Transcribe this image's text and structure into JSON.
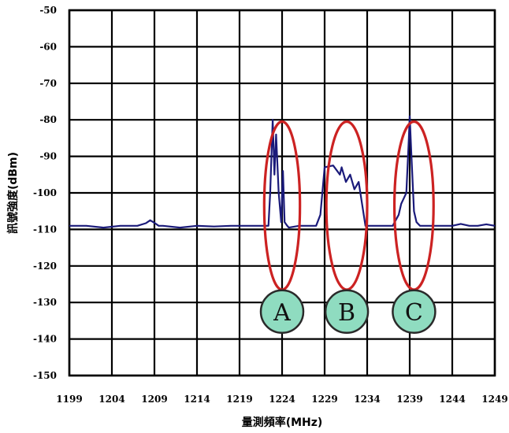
{
  "chart_data": {
    "type": "line",
    "title": "",
    "xlabel": "量測頻率(MHz)",
    "ylabel": "訊號強度(dBm)",
    "xlim": [
      1199,
      1249
    ],
    "ylim": [
      -150,
      -50
    ],
    "x_ticks": [
      "1199",
      "1204",
      "1209",
      "1214",
      "1219",
      "1224",
      "1229",
      "1234",
      "1239",
      "1244",
      "1249"
    ],
    "y_ticks": [
      "-50",
      "-60",
      "-70",
      "-80",
      "-90",
      "-100",
      "-110",
      "-120",
      "-130",
      "-140",
      "-150"
    ],
    "grid": true,
    "line_color": "#1a1a7a",
    "highlight_color": "#cc2222",
    "badge_color": "#8fdcc0",
    "series": [
      {
        "x": [
          1199,
          1201,
          1203,
          1205,
          1207,
          1208,
          1208.5,
          1209,
          1209.5,
          1210,
          1212,
          1214,
          1216,
          1218,
          1220,
          1222,
          1222.4,
          1222.6,
          1222.9,
          1223.1,
          1223.3,
          1223.6,
          1223.9,
          1224.1,
          1224.3,
          1224.6,
          1224.8,
          1226,
          1227,
          1228,
          1228.5,
          1229,
          1230,
          1230.8,
          1231,
          1231.5,
          1232,
          1232.5,
          1233,
          1233.4,
          1233.8,
          1234.5,
          1236,
          1237,
          1237.7,
          1238,
          1238.6,
          1238.9,
          1239,
          1239.2,
          1239.5,
          1239.8,
          1240.2,
          1242,
          1244,
          1245,
          1246,
          1247,
          1248,
          1249
        ],
        "y": [
          -109,
          -109,
          -109.5,
          -109,
          -109,
          -108.3,
          -107.5,
          -108.2,
          -109,
          -109,
          -109.5,
          -109,
          -109.2,
          -109,
          -109,
          -109,
          -109,
          -100,
          -80,
          -95,
          -84,
          -100,
          -108,
          -94,
          -108,
          -109,
          -109.5,
          -109,
          -109,
          -109,
          -106,
          -93,
          -92.5,
          -95,
          -93,
          -97,
          -95,
          -99,
          -97,
          -103,
          -109,
          -109,
          -109,
          -109,
          -106,
          -103,
          -100,
          -85,
          -79,
          -90,
          -105,
          -108,
          -109,
          -109,
          -109,
          -108.5,
          -109,
          -109,
          -108.6,
          -109
        ]
      }
    ],
    "highlights": [
      {
        "label": "A",
        "cx": 1224,
        "cy": -103.5,
        "rx": 2.1,
        "ry": 23
      },
      {
        "label": "B",
        "cx": 1231.6,
        "cy": -103.5,
        "rx": 2.4,
        "ry": 23
      },
      {
        "label": "C",
        "cx": 1239.5,
        "cy": -103.5,
        "rx": 2.3,
        "ry": 23
      }
    ],
    "badge_y": -132.5
  }
}
